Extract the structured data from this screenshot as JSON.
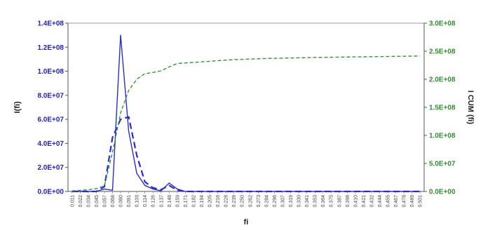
{
  "colors": {
    "primary": "#2b2bd6",
    "secondary": "#2e9b2e",
    "axis_left": "#1f1fcf",
    "axis_right": "#2e8f2e",
    "gridline": "#cfcfcf"
  },
  "chart_data": {
    "type": "line",
    "title": "",
    "xlabel": "fi",
    "ylabel": "I(fi)",
    "y2label": "I CUM (fi)",
    "grid": false,
    "legend": "none",
    "ylim": [
      0,
      140000000
    ],
    "y2lim": [
      0,
      300000000
    ],
    "yticks": [
      "0.0E+00",
      "2.0E+07",
      "4.0E+07",
      "6.0E+07",
      "8.0E+07",
      "1.0E+08",
      "1.2E+08",
      "1.4E+08"
    ],
    "y2ticks": [
      "0.0E+00",
      "5.0E+07",
      "1.0E+08",
      "1.5E+08",
      "2.0E+08",
      "2.5E+08",
      "3.0E+08"
    ],
    "categories": [
      "0.011",
      "0.022",
      "0.034",
      "0.045",
      "0.057",
      "0.068",
      "0.080",
      "0.091",
      "0.103",
      "0.114",
      "0.126",
      "0.137",
      "0.148",
      "0.159",
      "0.171",
      "0.182",
      "0.194",
      "0.205",
      "0.216",
      "0.228",
      "0.239",
      "0.250",
      "0.262",
      "0.273",
      "0.284",
      "0.296",
      "0.307",
      "0.319",
      "0.330",
      "0.341",
      "0.353",
      "0.364",
      "0.375",
      "0.387",
      "0.398",
      "0.410",
      "0.421",
      "0.432",
      "0.444",
      "0.455",
      "0.467",
      "0.478",
      "0.489",
      "0.501"
    ],
    "series": [
      {
        "axis": "left",
        "style": "solid",
        "values": [
          0,
          0,
          0,
          0,
          2000000,
          1000000,
          130000000,
          50000000,
          15000000,
          5000000,
          2000000,
          500000,
          7000000,
          2000000,
          0,
          0,
          0,
          0,
          0,
          0,
          0,
          0,
          0,
          0,
          0,
          0,
          0,
          0,
          0,
          0,
          0,
          0,
          0,
          0,
          0,
          0,
          0,
          0,
          0,
          0,
          0,
          0,
          0,
          0
        ]
      },
      {
        "axis": "left",
        "style": "dashed",
        "values": [
          0,
          0,
          0,
          0,
          4000000,
          45000000,
          60000000,
          62000000,
          30000000,
          8000000,
          3000000,
          1500000,
          5000000,
          1000000,
          0,
          0,
          0,
          0,
          0,
          0,
          0,
          0,
          0,
          0,
          0,
          0,
          0,
          0,
          0,
          0,
          0,
          0,
          0,
          0,
          0,
          0,
          0,
          0,
          0,
          0,
          0,
          0,
          0,
          0
        ]
      },
      {
        "axis": "right",
        "style": "dashed",
        "values": [
          1000000,
          2000000,
          3000000,
          5000000,
          10000000,
          70000000,
          140000000,
          180000000,
          200000000,
          210000000,
          212000000,
          215000000,
          222000000,
          228000000,
          229000000,
          230000000,
          231000000,
          232000000,
          233000000,
          234000000,
          235000000,
          235500000,
          236000000,
          236500000,
          237000000,
          237300000,
          237600000,
          237900000,
          238200000,
          238500000,
          238800000,
          239000000,
          239200000,
          239400000,
          239600000,
          239800000,
          240000000,
          240200000,
          240400000,
          240600000,
          240800000,
          241000000,
          241200000,
          241400000
        ]
      }
    ]
  }
}
